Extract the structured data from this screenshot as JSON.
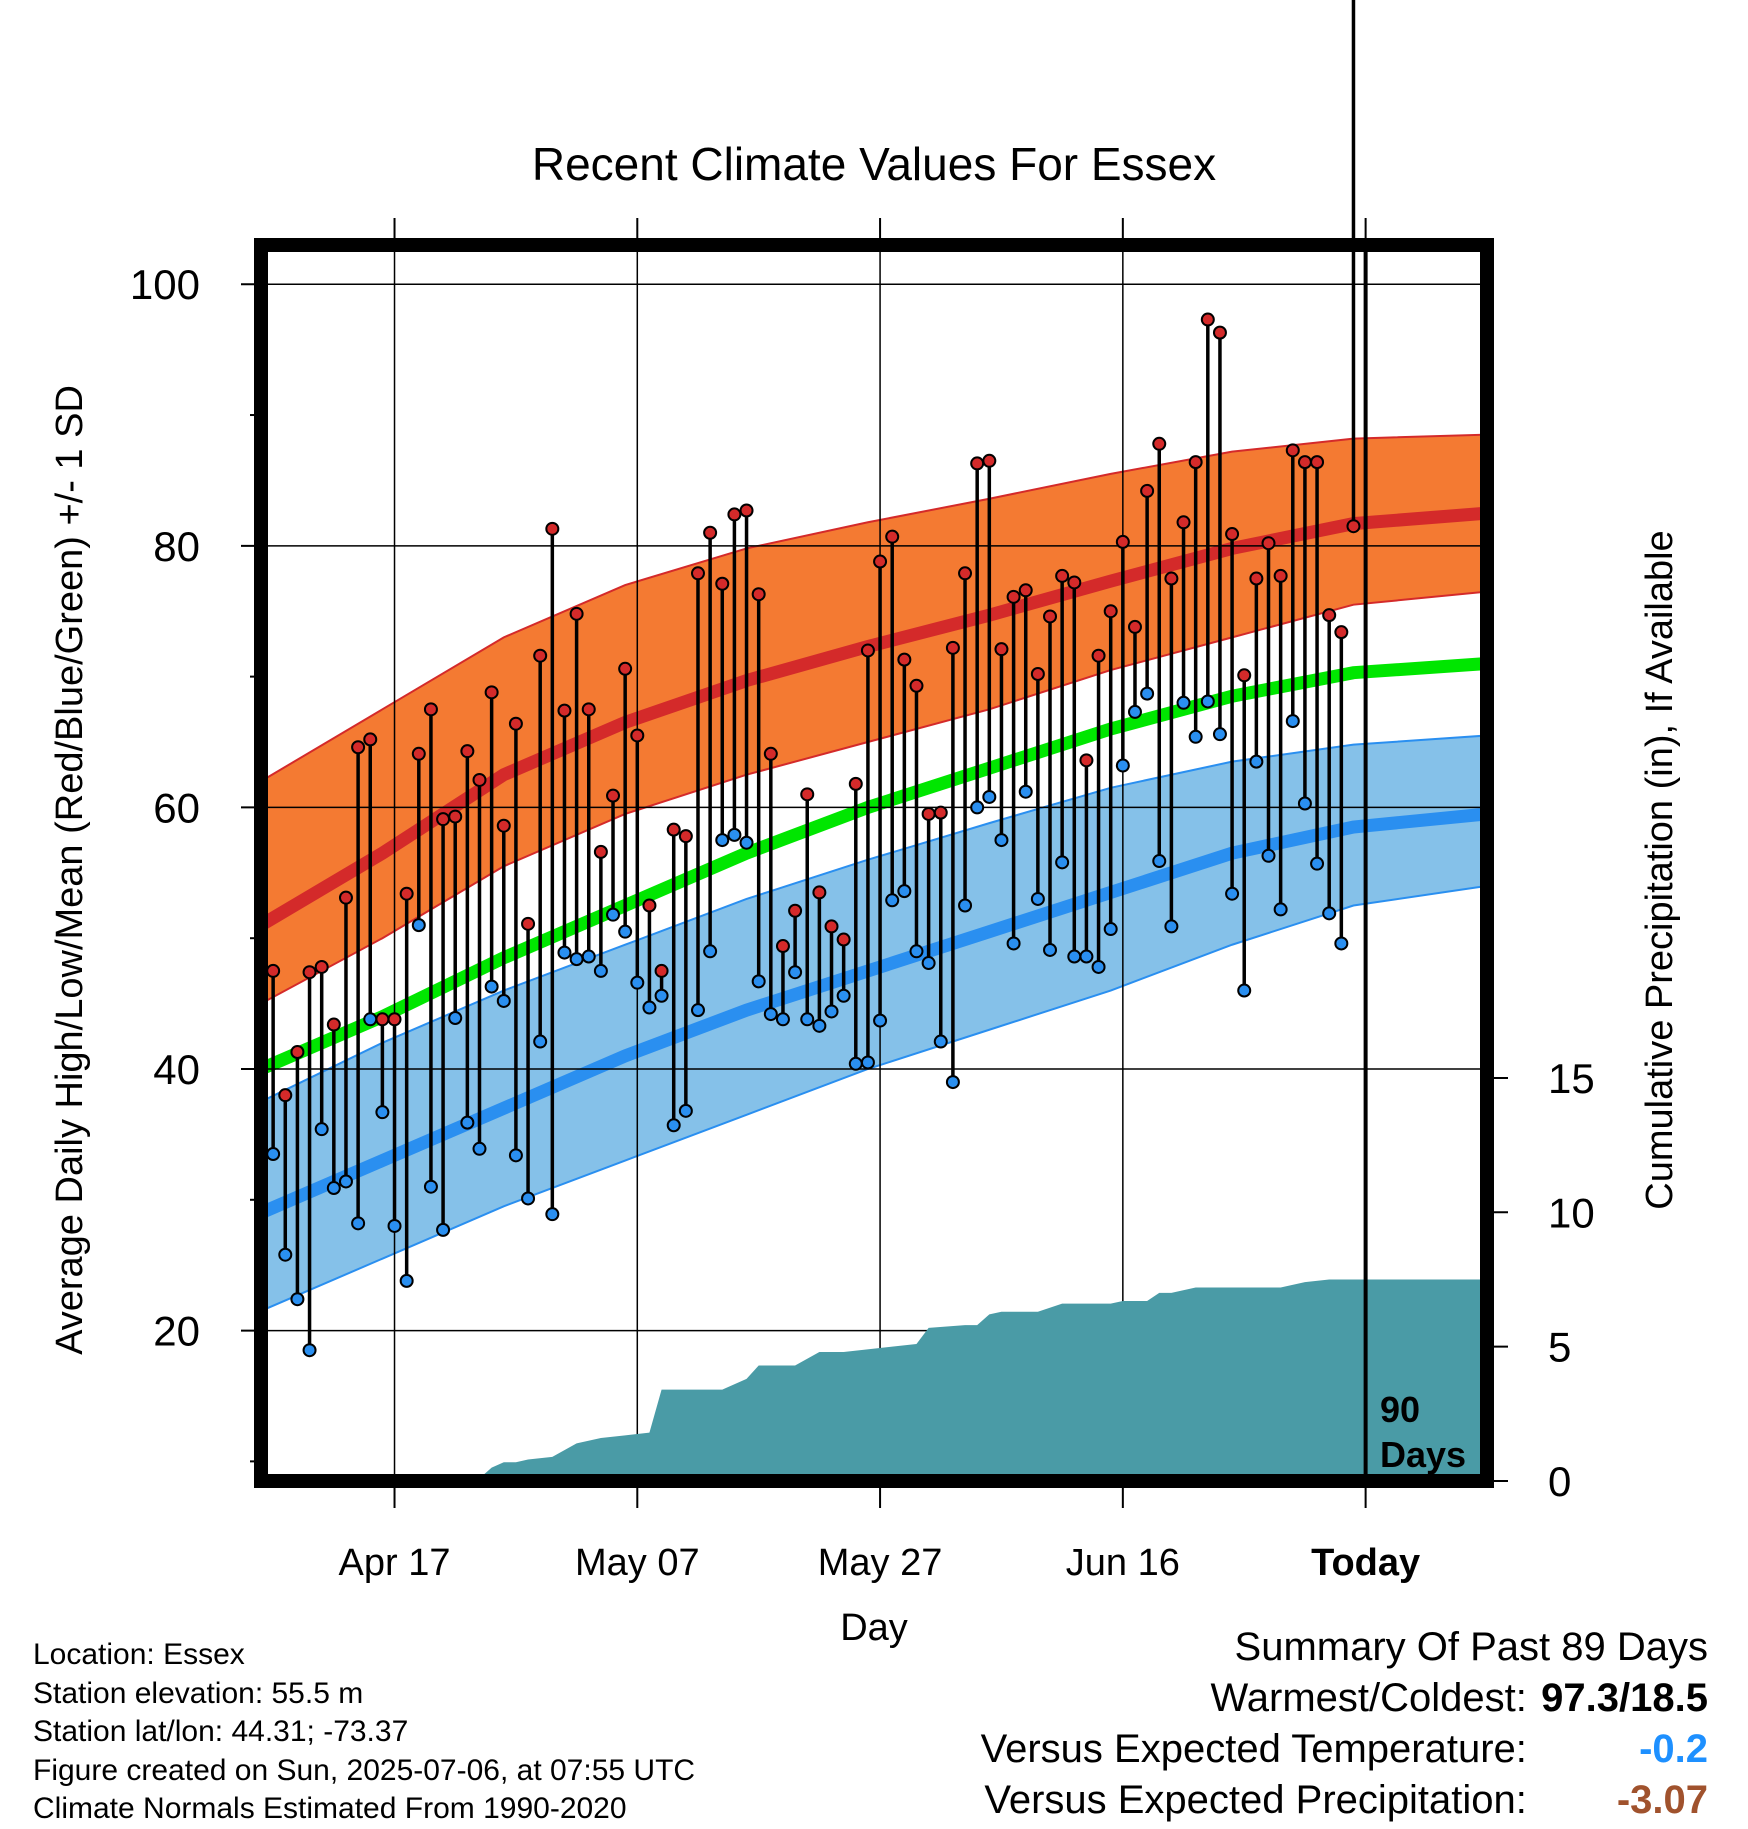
{
  "chart_data": {
    "type": "line",
    "title": "Recent Climate Values For Essex",
    "xlabel": "Day",
    "ylabel": "Average Daily High/Low/Mean (Red/Blue/Green) +/- 1 SD",
    "y2label": "Cumulative Precipitation (in), If Available",
    "ylim": [
      8.5,
      103
    ],
    "y2lim": [
      0,
      46
    ],
    "xlim": [
      0,
      101
    ],
    "yticks": [
      100,
      80,
      60,
      40,
      20
    ],
    "y2ticks": [
      0,
      5,
      10,
      15
    ],
    "xticks": [
      {
        "day": 11,
        "label": "Apr 17"
      },
      {
        "day": 31,
        "label": "May 07"
      },
      {
        "day": 51,
        "label": "May 27"
      },
      {
        "day": 71,
        "label": "Jun 16"
      },
      {
        "day": 91,
        "label": "Today"
      }
    ],
    "today_day": 91,
    "today_annotation": [
      "90",
      "Days"
    ],
    "normals": {
      "days": [
        0,
        10,
        20,
        30,
        40,
        50,
        60,
        70,
        80,
        90,
        101
      ],
      "high_mean": [
        51,
        56.5,
        62.5,
        66.5,
        69.7,
        72.3,
        74.7,
        77.3,
        79.8,
        81.7,
        82.5
      ],
      "high_upper": [
        62,
        67.5,
        73,
        77,
        79.8,
        81.8,
        83.6,
        85.5,
        87.2,
        88.2,
        88.5
      ],
      "high_lower": [
        45,
        50,
        55.5,
        59.5,
        62.5,
        65,
        67.5,
        70.5,
        73,
        75.5,
        76.5
      ],
      "mean_mean": [
        40,
        44,
        48.5,
        52.5,
        56.5,
        60,
        63,
        66,
        68.5,
        70.3,
        71
      ],
      "low_mean": [
        29,
        33,
        37,
        41,
        44.5,
        47.5,
        50.5,
        53.5,
        56.5,
        58.5,
        59.5
      ],
      "low_upper": [
        37.5,
        42,
        46,
        49.5,
        53,
        56,
        58.8,
        61.5,
        63.5,
        64.8,
        65.5
      ],
      "low_lower": [
        21.5,
        25.5,
        29.5,
        33,
        36.5,
        40,
        43,
        46,
        49.5,
        52.5,
        54
      ]
    },
    "series": [
      {
        "name": "Daily High",
        "values": [
          47.5,
          38,
          41.3,
          47.4,
          47.8,
          43.4,
          53.1,
          64.6,
          65.2,
          43.8,
          43.8,
          53.4,
          64.1,
          67.5,
          59.1,
          59.3,
          64.3,
          62.1,
          68.8,
          58.6,
          66.4,
          51.1,
          71.6,
          81.3,
          67.4,
          74.8,
          67.5,
          56.6,
          60.9,
          70.6,
          65.5,
          52.5,
          47.5,
          58.3,
          57.8,
          77.9,
          81,
          77.1,
          82.4,
          82.7,
          76.3,
          64.1,
          49.4,
          52.1,
          61,
          53.5,
          50.9,
          49.9,
          61.8,
          72,
          78.8,
          80.7,
          71.3,
          69.3,
          59.5,
          59.6,
          72.2,
          77.9,
          86.3,
          86.5,
          72.1,
          76.1,
          76.6,
          70.2,
          74.6,
          77.7,
          77.2,
          63.6,
          71.6,
          75,
          80.3,
          73.8,
          84.2,
          87.8,
          77.5,
          81.8,
          86.4,
          97.3,
          96.3,
          80.9,
          70.1,
          77.5,
          80.2,
          77.7,
          87.3,
          86.4,
          86.4,
          74.7,
          73.4,
          81.5
        ]
      },
      {
        "name": "Daily Low",
        "values": [
          33.5,
          25.8,
          22.4,
          18.5,
          35.4,
          30.9,
          31.4,
          28.2,
          43.8,
          36.7,
          28,
          23.8,
          51,
          31,
          27.7,
          43.9,
          35.9,
          33.9,
          46.3,
          45.2,
          33.4,
          30.1,
          42.1,
          28.9,
          48.9,
          48.4,
          48.6,
          47.5,
          51.8,
          50.5,
          46.6,
          44.7,
          45.6,
          35.7,
          36.8,
          44.5,
          49,
          57.5,
          57.9,
          57.3,
          46.7,
          44.2,
          43.8,
          47.4,
          43.8,
          43.3,
          44.4,
          45.6,
          40.4,
          40.5,
          43.7,
          52.9,
          53.6,
          49,
          48.1,
          42.1,
          39,
          52.5,
          60,
          60.8,
          57.5,
          49.6,
          61.2,
          53,
          49.1,
          55.8,
          48.6,
          48.6,
          47.8,
          50.7,
          63.2,
          67.3,
          68.7,
          55.9,
          50.9,
          68,
          65.4,
          68.1,
          65.6,
          53.4,
          46,
          63.5,
          56.3,
          52.2,
          66.6,
          60.3,
          55.7,
          51.9,
          49.6
        ]
      }
    ],
    "precip_cumulative": {
      "days": [
        0,
        10,
        15,
        18,
        19,
        20,
        21,
        22,
        24,
        26,
        28,
        30,
        32,
        33,
        35,
        38,
        40,
        41,
        44,
        46,
        48,
        52,
        54,
        55,
        58,
        59,
        60,
        61,
        64,
        66,
        70,
        71,
        73,
        74,
        75,
        77,
        79,
        81,
        82,
        84,
        86,
        88,
        90,
        91,
        101
      ],
      "values": [
        0,
        0,
        0.1,
        0.1,
        0.5,
        0.7,
        0.7,
        0.8,
        0.9,
        1.4,
        1.6,
        1.7,
        1.8,
        3.4,
        3.4,
        3.4,
        3.8,
        4.3,
        4.3,
        4.8,
        4.8,
        5,
        5.1,
        5.7,
        5.8,
        5.8,
        6.2,
        6.3,
        6.3,
        6.6,
        6.6,
        6.7,
        6.7,
        7,
        7,
        7.2,
        7.2,
        7.2,
        7.2,
        7.2,
        7.4,
        7.5,
        7.5,
        7.5,
        7.5
      ]
    }
  },
  "info": {
    "location": "Location: Essex",
    "elevation": "Station elevation: 55.5 m",
    "latlon": "Station lat/lon: 44.31; -73.37",
    "created": "Figure created on Sun, 2025-07-06, at 07:55 UTC",
    "normals_source": "Climate Normals Estimated From 1990-2020"
  },
  "summary": {
    "heading": "Summary Of Past 89 Days",
    "warm_cold_label": "Warmest/Coldest:",
    "warm_cold_value": "97.3/18.5",
    "temp_label": "Versus Expected Temperature:",
    "temp_value": "-0.2",
    "precip_label": "Versus Expected Precipitation:",
    "precip_value": "-3.07"
  },
  "colors": {
    "high_band": "#f47a32",
    "high_line": "#d42a2a",
    "low_band": "#85c1e9",
    "low_line": "#2a8ff0",
    "mean_line": "#00e600",
    "precip_fill": "#4a9ba6",
    "high_dot": "#d42a2a",
    "low_dot": "#2a8ff0"
  }
}
